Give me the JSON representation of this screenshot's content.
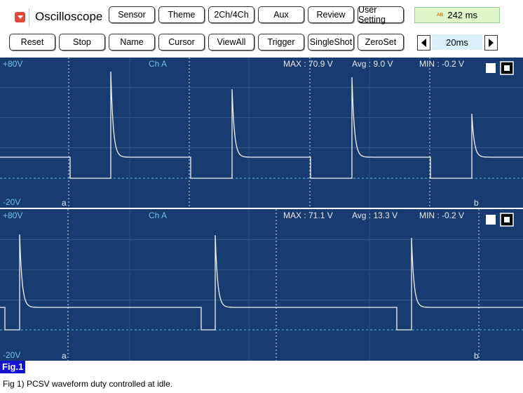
{
  "toolbar": {
    "title": "Oscilloscope",
    "buttons_row1": [
      "Sensor",
      "Theme",
      "2Ch/4Ch",
      "Aux",
      "Review",
      "User Setting"
    ],
    "time_icon": "AB",
    "time_display": "242 ms",
    "buttons_row2": [
      "Reset",
      "Stop",
      "Name",
      "Cursor",
      "ViewAll",
      "Trigger",
      "SingleShot",
      "ZeroSet"
    ],
    "timebase": "20ms"
  },
  "panels": [
    {
      "top_label": "+80V",
      "channel": "Ch A",
      "max": "MAX : 70.9 V",
      "avg": "Avg : 9.0 V",
      "min": "MIN : -0.2 V",
      "bottom_label": "-20V",
      "cursor_a": "a",
      "cursor_b": "b"
    },
    {
      "top_label": "+80V",
      "channel": "Ch A",
      "max": "MAX : 71.1 V",
      "avg": "Avg : 13.3 V",
      "min": "MIN : -0.2 V",
      "bottom_label": "-20V",
      "cursor_a": "a",
      "cursor_b": "b"
    }
  ],
  "figure_label": "Fig.1",
  "caption": "Fig 1) PCSV waveform duty controlled at idle."
}
